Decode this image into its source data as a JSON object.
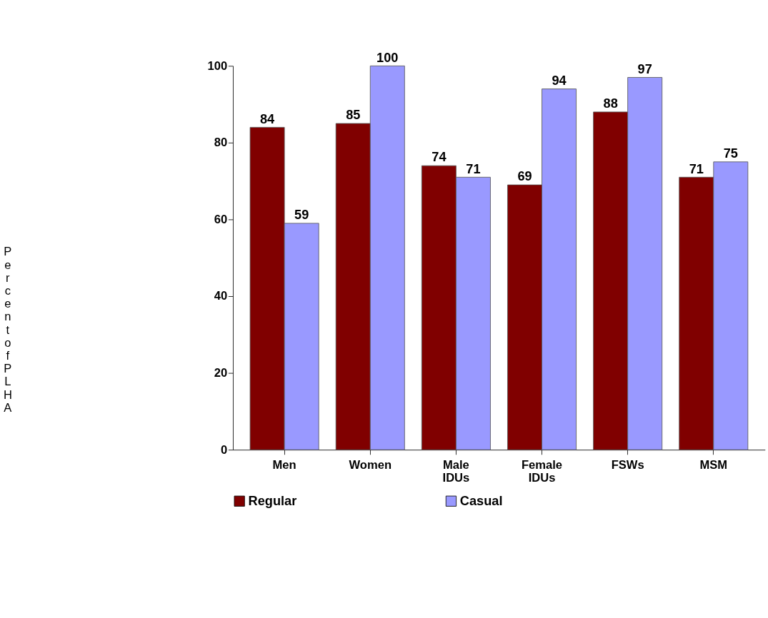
{
  "chart_data": {
    "type": "bar",
    "ylabel": "Percent of PLHA",
    "categories": [
      "Men",
      "Women",
      "Male IDUs",
      "Female IDUs",
      "FSWs",
      "MSM"
    ],
    "series": [
      {
        "name": "Regular",
        "color": "#800000",
        "values": [
          84,
          85,
          74,
          69,
          88,
          71
        ]
      },
      {
        "name": "Casual",
        "color": "#9999ff",
        "values": [
          59,
          100,
          71,
          94,
          97,
          75
        ]
      }
    ],
    "ylim": [
      0,
      100
    ],
    "yticks": [
      0,
      20,
      40,
      60,
      80,
      100
    ],
    "data_labels": true,
    "grid": false,
    "legend": "bottom"
  }
}
